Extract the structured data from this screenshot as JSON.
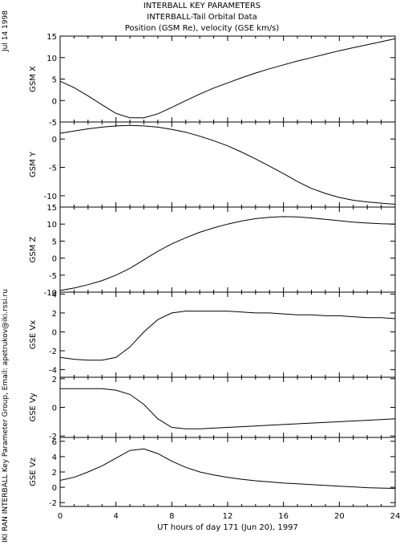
{
  "header": {
    "title_lines": [
      "INTERBALL KEY PARAMETERS",
      "INTERBALL-Tail Orbital Data",
      "Position (GSM Re), velocity (GSE km/s)"
    ],
    "date_stamp": "Jul 14 1998",
    "credit": "IKI RAN INTERBALL Key Parameter Group, Email: apetrukov@iki.rssi.ru"
  },
  "chart_data": {
    "type": "line",
    "xlabel": "UT hours of day 171 (Jun 20), 1997",
    "xlim": [
      0,
      24
    ],
    "xticks": [
      0,
      4,
      8,
      12,
      16,
      20,
      24
    ],
    "xminor_step": 1,
    "grid": false,
    "line_color": "#000000",
    "panels": [
      {
        "ylabel": "GSM X",
        "ylim": [
          -5,
          15
        ],
        "yticks": [
          -5,
          0,
          5,
          10,
          15
        ],
        "series": [
          {
            "x": [
              0,
              1,
              2,
              3,
              4,
              5,
              6,
              7,
              8,
              9,
              10,
              11,
              12,
              13,
              14,
              15,
              16,
              17,
              18,
              19,
              20,
              21,
              22,
              23,
              24
            ],
            "y": [
              4.5,
              3.0,
              1.1,
              -1.0,
              -3.0,
              -4.0,
              -4.0,
              -3.1,
              -1.6,
              0.0,
              1.5,
              2.9,
              4.1,
              5.3,
              6.4,
              7.4,
              8.3,
              9.2,
              10.0,
              10.8,
              11.6,
              12.3,
              13.0,
              13.7,
              14.4
            ]
          }
        ]
      },
      {
        "ylabel": "GSM Y",
        "ylim": [
          -12,
          3
        ],
        "yticks": [
          -10,
          -5,
          0
        ],
        "series": [
          {
            "x": [
              0,
              1,
              2,
              3,
              4,
              5,
              6,
              7,
              8,
              9,
              10,
              11,
              12,
              13,
              14,
              15,
              16,
              17,
              18,
              19,
              20,
              21,
              22,
              23,
              24
            ],
            "y": [
              1.0,
              1.4,
              1.8,
              2.1,
              2.3,
              2.4,
              2.3,
              2.1,
              1.7,
              1.2,
              0.5,
              -0.3,
              -1.2,
              -2.3,
              -3.5,
              -4.8,
              -6.1,
              -7.5,
              -8.7,
              -9.6,
              -10.3,
              -10.8,
              -11.1,
              -11.3,
              -11.5
            ]
          }
        ]
      },
      {
        "ylabel": "GSM Z",
        "ylim": [
          -10,
          15
        ],
        "yticks": [
          -10,
          -5,
          0,
          5,
          10,
          15
        ],
        "series": [
          {
            "x": [
              0,
              1,
              2,
              3,
              4,
              5,
              6,
              7,
              8,
              9,
              10,
              11,
              12,
              13,
              14,
              15,
              16,
              17,
              18,
              19,
              20,
              21,
              22,
              23,
              24
            ],
            "y": [
              -9.5,
              -8.8,
              -7.8,
              -6.6,
              -5.0,
              -3.0,
              -0.5,
              2.0,
              4.2,
              6.0,
              7.6,
              8.9,
              10.0,
              10.9,
              11.6,
              12.0,
              12.2,
              12.1,
              11.8,
              11.4,
              11.0,
              10.6,
              10.3,
              10.1,
              10.0
            ]
          }
        ]
      },
      {
        "ylabel": "GSE Vx",
        "ylim": [
          -4.8,
          4.2
        ],
        "yticks": [
          -4,
          -2,
          0,
          2,
          4
        ],
        "series": [
          {
            "x": [
              0,
              1,
              2,
              3,
              4,
              5,
              6,
              7,
              8,
              9,
              10,
              11,
              12,
              13,
              14,
              15,
              16,
              17,
              18,
              19,
              20,
              21,
              22,
              23,
              24
            ],
            "y": [
              -2.7,
              -2.9,
              -3.0,
              -3.0,
              -2.7,
              -1.6,
              0.0,
              1.3,
              2.0,
              2.2,
              2.2,
              2.2,
              2.2,
              2.1,
              2.0,
              2.0,
              1.9,
              1.8,
              1.8,
              1.7,
              1.7,
              1.6,
              1.5,
              1.5,
              1.4
            ]
          }
        ]
      },
      {
        "ylabel": "GSE Vy",
        "ylim": [
          -2.1,
          2.1
        ],
        "yticks": [
          -2,
          0,
          2
        ],
        "series": [
          {
            "x": [
              0,
              1,
              2,
              3,
              4,
              5,
              6,
              7,
              8,
              9,
              10,
              11,
              12,
              13,
              14,
              15,
              16,
              17,
              18,
              19,
              20,
              21,
              22,
              23,
              24
            ],
            "y": [
              1.3,
              1.3,
              1.3,
              1.3,
              1.2,
              0.9,
              0.2,
              -0.8,
              -1.4,
              -1.5,
              -1.5,
              -1.45,
              -1.4,
              -1.35,
              -1.3,
              -1.25,
              -1.2,
              -1.15,
              -1.1,
              -1.05,
              -1.0,
              -0.95,
              -0.9,
              -0.85,
              -0.8
            ]
          }
        ]
      },
      {
        "ylabel": "GSE Vz",
        "ylim": [
          -2.5,
          6.5
        ],
        "yticks": [
          -2,
          0,
          2,
          4,
          6
        ],
        "series": [
          {
            "x": [
              0,
              1,
              2,
              3,
              4,
              5,
              6,
              7,
              8,
              9,
              10,
              11,
              12,
              13,
              14,
              15,
              16,
              17,
              18,
              19,
              20,
              21,
              22,
              23,
              24
            ],
            "y": [
              0.9,
              1.3,
              2.0,
              2.8,
              3.8,
              4.8,
              5.0,
              4.4,
              3.4,
              2.6,
              2.0,
              1.6,
              1.3,
              1.05,
              0.85,
              0.7,
              0.55,
              0.45,
              0.35,
              0.25,
              0.15,
              0.05,
              -0.05,
              -0.1,
              -0.15
            ]
          }
        ]
      }
    ]
  }
}
